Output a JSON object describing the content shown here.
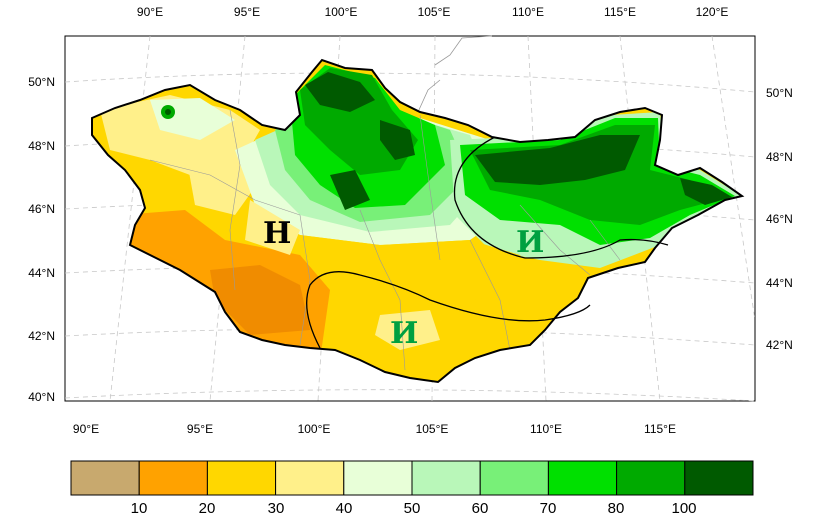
{
  "map": {
    "top_lon_labels": [
      "90°E",
      "95°E",
      "100°E",
      "105°E",
      "110°E",
      "115°E",
      "120°E"
    ],
    "bottom_lon_labels": [
      "90°E",
      "95°E",
      "100°E",
      "105°E",
      "110°E",
      "115°E"
    ],
    "left_lat_labels": [
      "50°N",
      "48°N",
      "46°N",
      "44°N",
      "42°N",
      "40°N"
    ],
    "right_lat_labels": [
      "50°N",
      "48°N",
      "46°N",
      "44°N",
      "42°N"
    ],
    "region_labels": {
      "h": "Н",
      "i_east": "И",
      "i_south": "И"
    }
  },
  "legend": {
    "colors": [
      "#c8a96e",
      "#ffa200",
      "#ffd700",
      "#fff08a",
      "#e8ffd8",
      "#b9f7b9",
      "#78f078",
      "#00e000",
      "#00aa00",
      "#005a00"
    ],
    "ticks": [
      "10",
      "20",
      "30",
      "40",
      "50",
      "60",
      "70",
      "80",
      "100"
    ]
  },
  "accent_colors": {
    "label_green": "#00a040",
    "label_black": "#000000"
  }
}
